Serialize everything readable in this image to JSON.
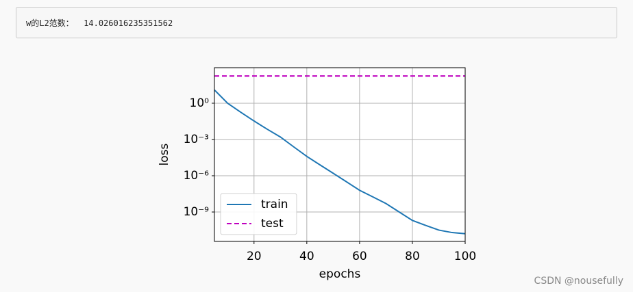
{
  "output": {
    "label": "w的L2范数：",
    "value": 14.026016235351562
  },
  "watermark": "CSDN @nousefully",
  "chart_data": {
    "type": "line",
    "xlabel": "epochs",
    "ylabel": "loss",
    "x": [
      5,
      10,
      15,
      20,
      25,
      30,
      35,
      40,
      45,
      50,
      55,
      60,
      65,
      70,
      75,
      80,
      85,
      90,
      95,
      100
    ],
    "series": [
      {
        "name": "train",
        "color": "#1f77b4",
        "style": "solid",
        "values": [
          12.6,
          1.0,
          0.178,
          0.034,
          0.0071,
          0.0016,
          0.00025,
          4e-05,
          7.9e-06,
          1.6e-06,
          3.2e-07,
          6.3e-08,
          1.8e-08,
          5e-09,
          1e-09,
          2e-10,
          7.9e-11,
          3.2e-11,
          2e-11,
          1.6e-11
        ]
      },
      {
        "name": "test",
        "color": "#bf00bf",
        "style": "dashed",
        "values": [
          180,
          180,
          180,
          180,
          180,
          180,
          180,
          180,
          180,
          180,
          180,
          180,
          180,
          180,
          180,
          180,
          180,
          180,
          180,
          180
        ]
      }
    ],
    "xlim": [
      5,
      100
    ],
    "xticks": [
      20,
      40,
      60,
      80,
      100
    ],
    "ylim": [
      3.7e-12,
      870
    ],
    "ylog": true,
    "yticks": [
      {
        "value": 1,
        "label": "10⁰"
      },
      {
        "value": 0.001,
        "label": "10⁻³"
      },
      {
        "value": 1e-06,
        "label": "10⁻⁶"
      },
      {
        "value": 1e-09,
        "label": "10⁻⁹"
      }
    ],
    "grid": true,
    "legend": "lower left"
  }
}
